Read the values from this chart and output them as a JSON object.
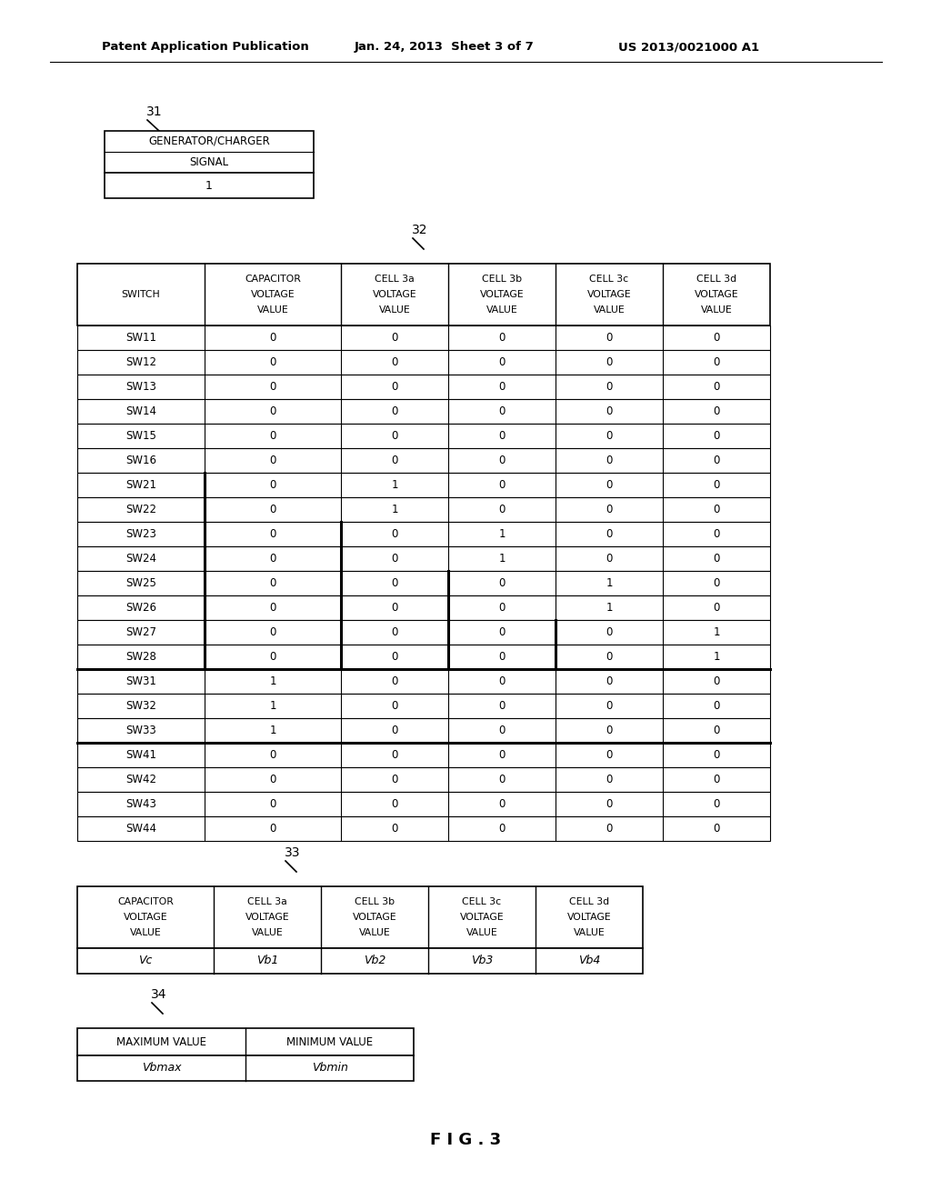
{
  "bg_color": "#ffffff",
  "header_left": "Patent Application Publication",
  "header_mid": "Jan. 24, 2013  Sheet 3 of 7",
  "header_right": "US 2013/0021000 A1",
  "fig_label": "F I G . 3",
  "table31_label": "31",
  "table31_header1": "GENERATOR/CHARGER",
  "table31_header2": "SIGNAL",
  "table31_data": "1",
  "table32_label": "32",
  "table32_col_headers": [
    "SWITCH",
    "CAPACITOR\nVOLTAGE\nVALUE",
    "CELL 3a\nVOLTAGE\nVALUE",
    "CELL 3b\nVOLTAGE\nVALUE",
    "CELL 3c\nVOLTAGE\nVALUE",
    "CELL 3d\nVOLTAGE\nVALUE"
  ],
  "table32_rows": [
    [
      "SW11",
      "0",
      "0",
      "0",
      "0",
      "0"
    ],
    [
      "SW12",
      "0",
      "0",
      "0",
      "0",
      "0"
    ],
    [
      "SW13",
      "0",
      "0",
      "0",
      "0",
      "0"
    ],
    [
      "SW14",
      "0",
      "0",
      "0",
      "0",
      "0"
    ],
    [
      "SW15",
      "0",
      "0",
      "0",
      "0",
      "0"
    ],
    [
      "SW16",
      "0",
      "0",
      "0",
      "0",
      "0"
    ],
    [
      "SW21",
      "0",
      "1",
      "0",
      "0",
      "0"
    ],
    [
      "SW22",
      "0",
      "1",
      "0",
      "0",
      "0"
    ],
    [
      "SW23",
      "0",
      "0",
      "1",
      "0",
      "0"
    ],
    [
      "SW24",
      "0",
      "0",
      "1",
      "0",
      "0"
    ],
    [
      "SW25",
      "0",
      "0",
      "0",
      "1",
      "0"
    ],
    [
      "SW26",
      "0",
      "0",
      "0",
      "1",
      "0"
    ],
    [
      "SW27",
      "0",
      "0",
      "0",
      "0",
      "1"
    ],
    [
      "SW28",
      "0",
      "0",
      "0",
      "0",
      "1"
    ],
    [
      "SW31",
      "1",
      "0",
      "0",
      "0",
      "0"
    ],
    [
      "SW32",
      "1",
      "0",
      "0",
      "0",
      "0"
    ],
    [
      "SW33",
      "1",
      "0",
      "0",
      "0",
      "0"
    ],
    [
      "SW41",
      "0",
      "0",
      "0",
      "0",
      "0"
    ],
    [
      "SW42",
      "0",
      "0",
      "0",
      "0",
      "0"
    ],
    [
      "SW43",
      "0",
      "0",
      "0",
      "0",
      "0"
    ],
    [
      "SW44",
      "0",
      "0",
      "0",
      "0",
      "0"
    ]
  ],
  "table33_label": "33",
  "table33_col_headers": [
    "CAPACITOR\nVOLTAGE\nVALUE",
    "CELL 3a\nVOLTAGE\nVALUE",
    "CELL 3b\nVOLTAGE\nVALUE",
    "CELL 3c\nVOLTAGE\nVALUE",
    "CELL 3d\nVOLTAGE\nVALUE"
  ],
  "table33_data": [
    "Vc",
    "Vb1",
    "Vb2",
    "Vb3",
    "Vb4"
  ],
  "table34_label": "34",
  "table34_col_headers": [
    "MAXIMUM VALUE",
    "MINIMUM VALUE"
  ],
  "table34_data": [
    "Vbmax",
    "Vbmin"
  ]
}
